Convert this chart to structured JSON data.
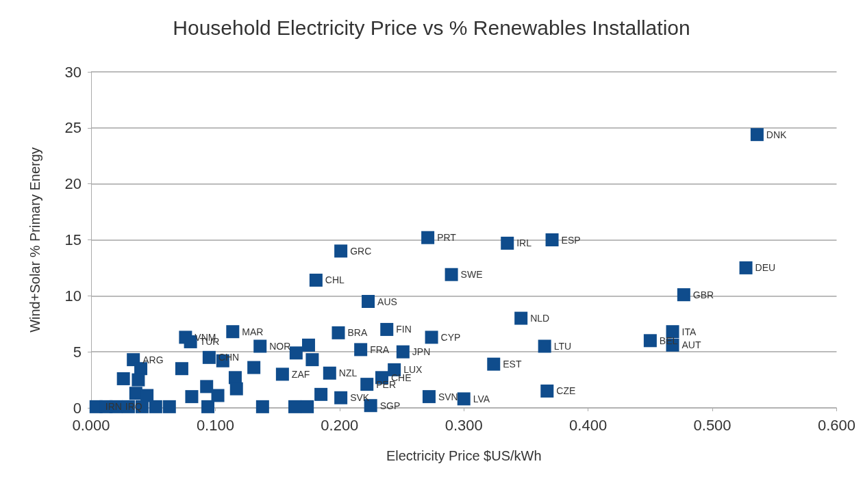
{
  "chart_data": {
    "type": "scatter",
    "title": "Household Electricity Price vs % Renewables Installation",
    "xlabel": "Electricity Price $US/kWh",
    "ylabel": "Wind+Solar % Primary Energy",
    "x": [
      0.536,
      0.527,
      0.477,
      0.468,
      0.468,
      0.45,
      0.367,
      0.365,
      0.346,
      0.324,
      0.371,
      0.335,
      0.271,
      0.29,
      0.201,
      0.181,
      0.223,
      0.199,
      0.238,
      0.274,
      0.217,
      0.251,
      0.244,
      0.234,
      0.222,
      0.201,
      0.225,
      0.272,
      0.3,
      0.192,
      0.154,
      0.136,
      0.114,
      0.076,
      0.08,
      0.095,
      0.034,
      0.004,
      0.02,
      0.012,
      0.026,
      0.04,
      0.038,
      0.036,
      0.045,
      0.03,
      0.041,
      0.052,
      0.063,
      0.073,
      0.081,
      0.093,
      0.094,
      0.102,
      0.106,
      0.116,
      0.117,
      0.131,
      0.138,
      0.165,
      0.175,
      0.178,
      0.185,
      0.164,
      0.174
    ],
    "values": [
      24.4,
      12.5,
      10.1,
      6.8,
      5.6,
      6.0,
      1.5,
      5.5,
      8.0,
      3.9,
      15.0,
      14.7,
      15.2,
      11.9,
      14.0,
      11.4,
      9.5,
      6.7,
      7.0,
      6.3,
      5.2,
      5.0,
      3.4,
      2.7,
      2.1,
      0.9,
      0.2,
      1.0,
      0.8,
      3.1,
      3.0,
      5.5,
      6.8,
      6.3,
      5.9,
      4.5,
      4.3,
      0.1,
      0.1,
      0.1,
      2.6,
      3.5,
      2.5,
      1.3,
      1.1,
      0.1,
      0.1,
      0.1,
      0.1,
      3.5,
      1.0,
      1.9,
      0.1,
      1.1,
      4.2,
      2.7,
      1.7,
      3.6,
      0.1,
      4.9,
      5.6,
      4.3,
      1.2,
      0.1,
      0.1
    ],
    "color": "#0f4c8c",
    "marker": "square",
    "grid": "y",
    "xlim": [
      0,
      0.6
    ],
    "xticks": [
      {
        "value": 0,
        "label": "0.000"
      },
      {
        "value": 0.1,
        "label": "0.100"
      },
      {
        "value": 0.2,
        "label": "0.200"
      },
      {
        "value": 0.3,
        "label": "0.300"
      },
      {
        "value": 0.4,
        "label": "0.400"
      },
      {
        "value": 0.5,
        "label": "0.500"
      },
      {
        "value": 0.6,
        "label": "0.600"
      }
    ],
    "ylim": [
      0,
      30
    ],
    "yticks": [
      0,
      5,
      10,
      15,
      20,
      25,
      30
    ],
    "annotations": [
      {
        "text": "DNK",
        "x": 0.536,
        "y": 24.4
      },
      {
        "text": "DEU",
        "x": 0.527,
        "y": 12.5
      },
      {
        "text": "GBR",
        "x": 0.477,
        "y": 10.1
      },
      {
        "text": "ITA",
        "x": 0.468,
        "y": 6.8
      },
      {
        "text": "AUT",
        "x": 0.468,
        "y": 5.6
      },
      {
        "text": "BEL",
        "x": 0.45,
        "y": 6.0
      },
      {
        "text": "CZE",
        "x": 0.367,
        "y": 1.5
      },
      {
        "text": "LTU",
        "x": 0.365,
        "y": 5.5
      },
      {
        "text": "NLD",
        "x": 0.346,
        "y": 8.0
      },
      {
        "text": "EST",
        "x": 0.324,
        "y": 3.9
      },
      {
        "text": "ESP",
        "x": 0.371,
        "y": 15.0
      },
      {
        "text": "IRL",
        "x": 0.335,
        "y": 14.7
      },
      {
        "text": "PRT",
        "x": 0.271,
        "y": 15.2
      },
      {
        "text": "SWE",
        "x": 0.29,
        "y": 11.9
      },
      {
        "text": "GRC",
        "x": 0.201,
        "y": 14.0
      },
      {
        "text": "CHL",
        "x": 0.181,
        "y": 11.4
      },
      {
        "text": "AUS",
        "x": 0.223,
        "y": 9.5
      },
      {
        "text": "BRA",
        "x": 0.199,
        "y": 6.7
      },
      {
        "text": "FIN",
        "x": 0.238,
        "y": 7.0
      },
      {
        "text": "CYP",
        "x": 0.274,
        "y": 6.3
      },
      {
        "text": "FRA",
        "x": 0.217,
        "y": 5.2
      },
      {
        "text": "JPN",
        "x": 0.251,
        "y": 5.0
      },
      {
        "text": "LUX",
        "x": 0.244,
        "y": 3.4
      },
      {
        "text": "CHE",
        "x": 0.234,
        "y": 2.7
      },
      {
        "text": "PER",
        "x": 0.222,
        "y": 2.1
      },
      {
        "text": "SVK",
        "x": 0.201,
        "y": 0.9
      },
      {
        "text": "SGP",
        "x": 0.225,
        "y": 0.2
      },
      {
        "text": "SVN",
        "x": 0.272,
        "y": 1.0
      },
      {
        "text": "LVA",
        "x": 0.3,
        "y": 0.8
      },
      {
        "text": "NZL",
        "x": 0.192,
        "y": 3.1
      },
      {
        "text": "ZAF",
        "x": 0.154,
        "y": 3.0
      },
      {
        "text": "NOR",
        "x": 0.136,
        "y": 5.5
      },
      {
        "text": "MAR",
        "x": 0.114,
        "y": 6.8
      },
      {
        "text": "VNM",
        "x": 0.076,
        "y": 6.3
      },
      {
        "text": "TUR",
        "x": 0.08,
        "y": 5.9
      },
      {
        "text": "CHN",
        "x": 0.095,
        "y": 4.5
      },
      {
        "text": "ARG",
        "x": 0.034,
        "y": 4.3
      },
      {
        "text": "IRN",
        "x": 0.004,
        "y": 0.1
      },
      {
        "text": "IRQ",
        "x": 0.02,
        "y": 0.1
      }
    ]
  }
}
